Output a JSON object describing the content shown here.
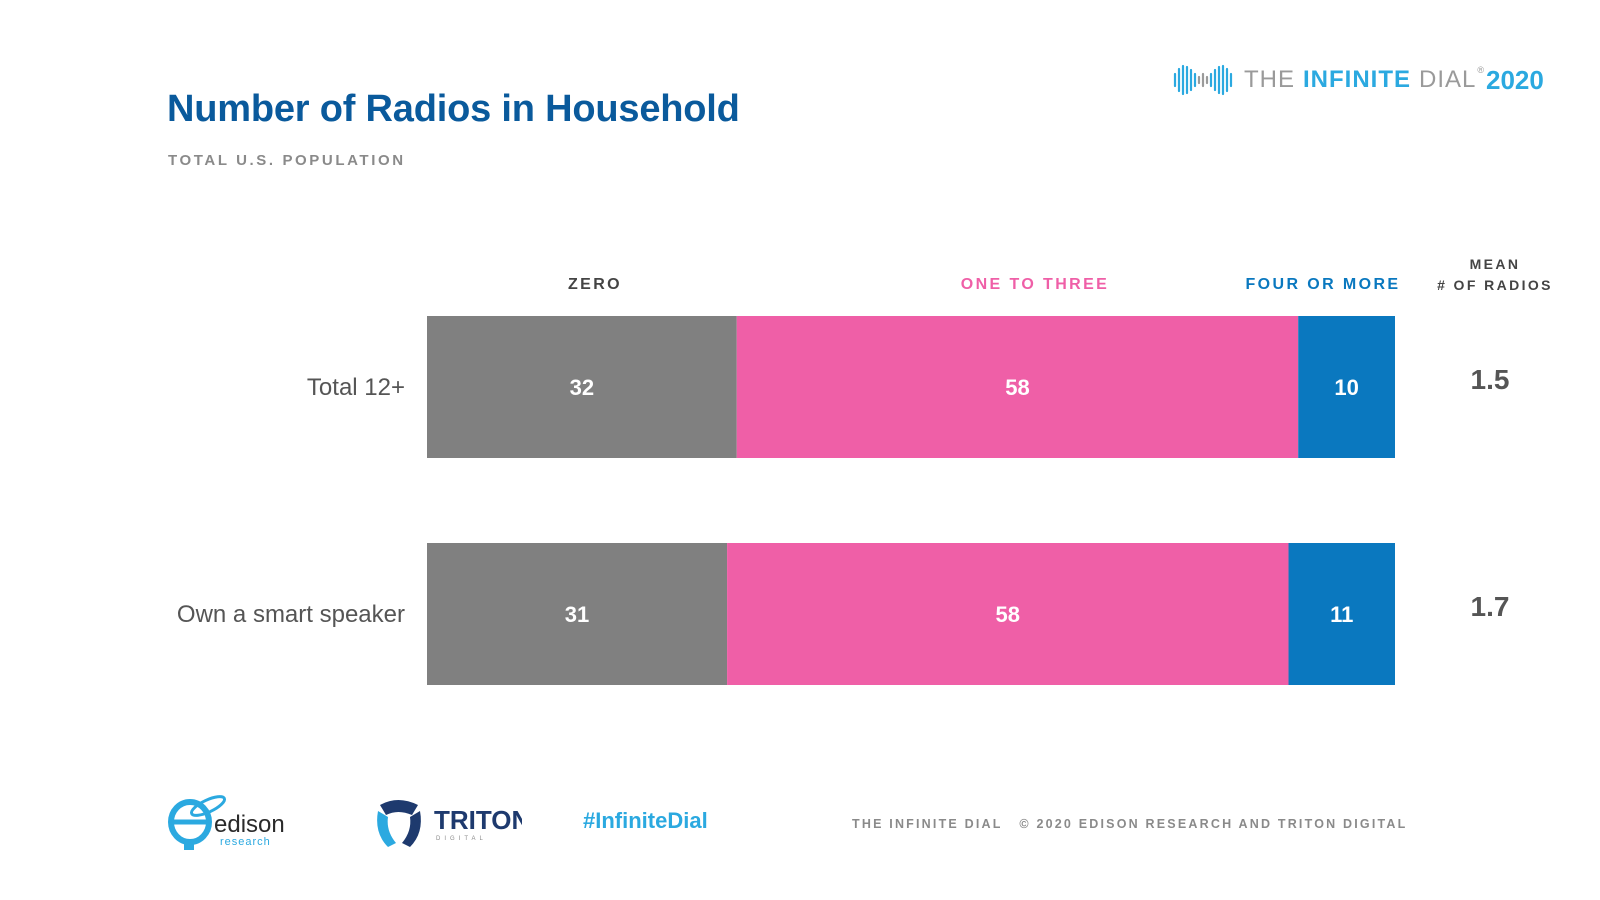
{
  "header": {
    "title": "Number of Radios in Household",
    "subtitle": "TOTAL U.S. POPULATION"
  },
  "brand": {
    "the": "THE",
    "infinite": "INFINITE",
    "dial": "DIAL",
    "tm": "®",
    "year": "2020"
  },
  "mean_header": {
    "line1": "MEAN",
    "line2": "# OF RADIOS"
  },
  "colors": {
    "zero": "#808080",
    "one_to_three": "#ef5fa7",
    "four_or_more": "#0a78bf",
    "title": "#0a5a9c",
    "accent": "#2ba9e0"
  },
  "chart_data": {
    "type": "bar",
    "orientation": "horizontal",
    "stacked": true,
    "categories": [
      "Total 12+",
      "Own a smart speaker"
    ],
    "series": [
      {
        "name": "ZERO",
        "values": [
          32,
          31
        ],
        "color": "#808080"
      },
      {
        "name": "ONE TO THREE",
        "values": [
          58,
          58
        ],
        "color": "#ef5fa7"
      },
      {
        "name": "FOUR OR MORE",
        "values": [
          10,
          11
        ],
        "color": "#0a78bf"
      }
    ],
    "mean": {
      "values": [
        "1.5",
        "1.7"
      ]
    },
    "xlim": [
      0,
      100
    ]
  },
  "footer": {
    "edison_word": "edison",
    "edison_sub": "research",
    "triton_word": "TRITON",
    "triton_sub": "DIGITAL",
    "hashtag": "#InfiniteDial",
    "credit": "THE INFINITE DIAL   © 2020 EDISON RESEARCH AND TRITON DIGITAL"
  }
}
